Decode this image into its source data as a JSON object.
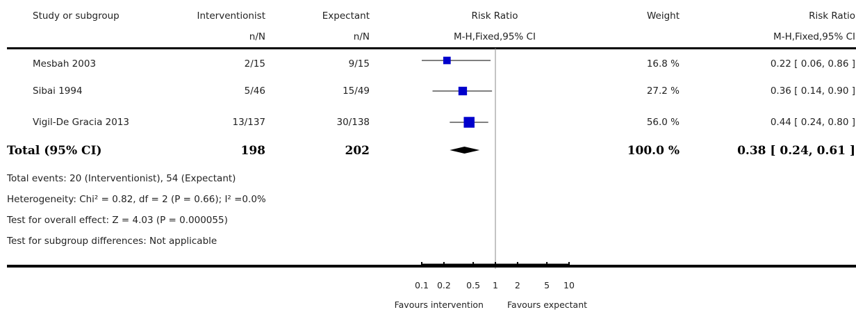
{
  "headers": {
    "study": "Study or subgroup",
    "group1": "Interventionist",
    "group1_sub": "n/N",
    "group2": "Expectant",
    "group2_sub": "n/N",
    "rr": "Risk Ratio",
    "rr_sub": "M-H,Fixed,95% CI",
    "weight": "Weight",
    "rr2": "Risk Ratio",
    "rr2_sub": "M-H,Fixed,95% CI"
  },
  "studies": [
    {
      "name": "Mesbah 2003",
      "g1": "2/15",
      "g2": "9/15",
      "weight": "16.8 %",
      "ci": "0.22 [ 0.06, 0.86 ]"
    },
    {
      "name": "Sibai 1994",
      "g1": "5/46",
      "g2": "15/49",
      "weight": "27.2 %",
      "ci": "0.36 [ 0.14, 0.90 ]"
    },
    {
      "name": "Vigil-De Gracia 2013",
      "g1": "13/137",
      "g2": "30/138",
      "weight": "56.0 %",
      "ci": "0.44 [ 0.24, 0.80 ]"
    }
  ],
  "total": {
    "label": "Total (95% CI)",
    "g1": "198",
    "g2": "202",
    "weight": "100.0 %",
    "ci": "0.38 [ 0.24, 0.61 ]"
  },
  "footnotes": {
    "events": "Total events: 20 (Interventionist), 54 (Expectant)",
    "heterogeneity": "Heterogeneity: Chi² = 0.82, df = 2 (P = 0.66); I² =0.0%",
    "overall": "Test for overall effect: Z = 4.03 (P = 0.000055)",
    "subgroup": "Test for subgroup differences: Not applicable"
  },
  "axis": {
    "favours_left": "Favours intervention",
    "favours_right": "Favours expectant"
  },
  "chart_data": {
    "type": "scatter",
    "scale": "log",
    "xlim": [
      0.1,
      10
    ],
    "null_line": 1,
    "ticks": [
      {
        "v": 0.1,
        "label": "0.1"
      },
      {
        "v": 0.2,
        "label": "0.2"
      },
      {
        "v": 0.5,
        "label": "0.5"
      },
      {
        "v": 1,
        "label": "1"
      },
      {
        "v": 2,
        "label": "2"
      },
      {
        "v": 5,
        "label": "5"
      },
      {
        "v": 10,
        "label": "10"
      }
    ],
    "studies": [
      {
        "name": "Mesbah 2003",
        "rr": 0.22,
        "lo": 0.06,
        "hi": 0.86,
        "weight": 16.8
      },
      {
        "name": "Sibai 1994",
        "rr": 0.36,
        "lo": 0.14,
        "hi": 0.9,
        "weight": 27.2
      },
      {
        "name": "Vigil-De Gracia 2013",
        "rr": 0.44,
        "lo": 0.24,
        "hi": 0.8,
        "weight": 56.0
      }
    ],
    "total": {
      "rr": 0.38,
      "lo": 0.24,
      "hi": 0.61
    },
    "marker_color": "#0000cc"
  }
}
